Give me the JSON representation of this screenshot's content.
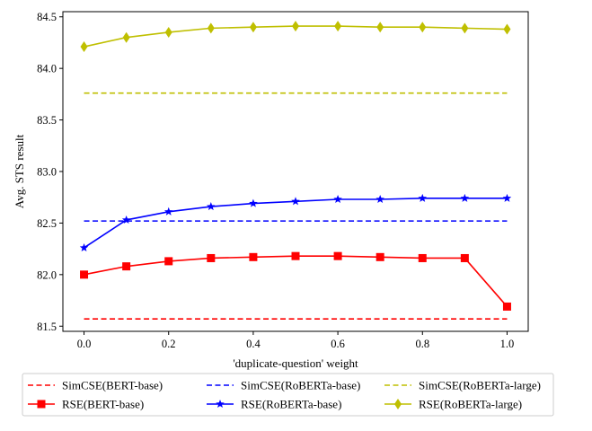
{
  "chart_data": {
    "type": "line",
    "xlabel": "'duplicate-question' weight",
    "ylabel": "Avg. STS result",
    "xlim": [
      -0.05,
      1.05
    ],
    "ylim": [
      81.45,
      84.55
    ],
    "x_ticks": [
      0.0,
      0.2,
      0.4,
      0.6,
      0.8,
      1.0
    ],
    "x_tick_labels": [
      "0.0",
      "0.2",
      "0.4",
      "0.6",
      "0.8",
      "1.0"
    ],
    "y_ticks": [
      81.5,
      82.0,
      82.5,
      83.0,
      83.5,
      84.0,
      84.5
    ],
    "y_tick_labels": [
      "81.5",
      "82.0",
      "82.5",
      "83.0",
      "83.5",
      "84.0",
      "84.5"
    ],
    "grid": false,
    "legend_position": "below plot, 3 columns",
    "x": [
      0.0,
      0.1,
      0.2,
      0.3,
      0.4,
      0.5,
      0.6,
      0.7,
      0.8,
      0.9,
      1.0
    ],
    "series": [
      {
        "name": "SimCSE(BERT-base)",
        "color": "#ff0000",
        "style": "dashed",
        "marker": "none",
        "values": [
          81.57,
          81.57,
          81.57,
          81.57,
          81.57,
          81.57,
          81.57,
          81.57,
          81.57,
          81.57,
          81.57
        ]
      },
      {
        "name": "RSE(BERT-base)",
        "color": "#ff0000",
        "style": "solid",
        "marker": "square",
        "values": [
          82.0,
          82.08,
          82.13,
          82.16,
          82.17,
          82.18,
          82.18,
          82.17,
          82.16,
          82.16,
          81.69
        ]
      },
      {
        "name": "SimCSE(RoBERTa-base)",
        "color": "#0000ff",
        "style": "dashed",
        "marker": "none",
        "values": [
          82.52,
          82.52,
          82.52,
          82.52,
          82.52,
          82.52,
          82.52,
          82.52,
          82.52,
          82.52,
          82.52
        ]
      },
      {
        "name": "RSE(RoBERTa-base)",
        "color": "#0000ff",
        "style": "solid",
        "marker": "star",
        "values": [
          82.26,
          82.53,
          82.61,
          82.66,
          82.69,
          82.71,
          82.73,
          82.73,
          82.74,
          82.74,
          82.74
        ]
      },
      {
        "name": "SimCSE(RoBERTa-large)",
        "color": "#bfbf00",
        "style": "dashed",
        "marker": "none",
        "values": [
          83.76,
          83.76,
          83.76,
          83.76,
          83.76,
          83.76,
          83.76,
          83.76,
          83.76,
          83.76,
          83.76
        ]
      },
      {
        "name": "RSE(RoBERTa-large)",
        "color": "#bfbf00",
        "style": "solid",
        "marker": "diamond",
        "values": [
          84.21,
          84.3,
          84.35,
          84.39,
          84.4,
          84.41,
          84.41,
          84.4,
          84.4,
          84.39,
          84.38
        ]
      }
    ]
  }
}
